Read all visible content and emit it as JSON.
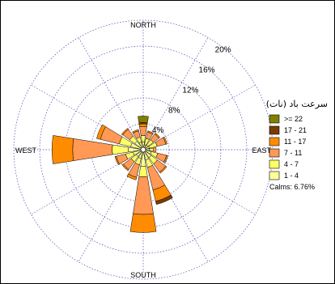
{
  "chart_data": {
    "type": "windrose",
    "title": "",
    "directions": [
      "NORTH",
      "EAST",
      "SOUTH",
      "WEST"
    ],
    "rings": [
      {
        "value": 4,
        "label": "4%"
      },
      {
        "value": 8,
        "label": "8%"
      },
      {
        "value": 12,
        "label": "12%"
      },
      {
        "value": 16,
        "label": "16%"
      },
      {
        "value": 20,
        "label": "20%"
      }
    ],
    "rmax": 20,
    "sector_count": 16,
    "sector_angles": [
      0,
      22.5,
      45,
      67.5,
      90,
      112.5,
      135,
      157.5,
      180,
      202.5,
      225,
      247.5,
      270,
      292.5,
      315,
      337.5
    ],
    "legend": {
      "title": "سرعت باد (نات)",
      "position": "right",
      "calms": "Calms: 6.76%"
    },
    "series": [
      {
        "name": "1 - 4",
        "color": "#ffff99",
        "values": [
          1.2,
          0.8,
          0.9,
          1.0,
          1.0,
          1.3,
          1.5,
          1.6,
          2.6,
          1.4,
          1.3,
          1.6,
          2.3,
          2.0,
          1.6,
          1.2
        ]
      },
      {
        "name": "4 - 7",
        "color": "#ffff66",
        "values": [
          1.0,
          1.0,
          1.0,
          1.2,
          0.6,
          1.0,
          1.2,
          1.2,
          1.6,
          1.0,
          1.0,
          1.2,
          2.5,
          1.8,
          1.0,
          0.8
        ]
      },
      {
        "name": "7 - 11",
        "color": "#ff9955",
        "values": [
          1.4,
          1.0,
          1.1,
          1.4,
          0.4,
          1.4,
          1.6,
          3.6,
          5.8,
          2.0,
          1.5,
          1.5,
          6.1,
          3.0,
          1.3,
          1.0
        ]
      },
      {
        "name": "11 - 17",
        "color": "#ff8c00",
        "values": [
          0.4,
          0.2,
          0.2,
          0.2,
          0.0,
          0.2,
          0.2,
          1.8,
          2.8,
          0.4,
          0.2,
          0.2,
          3.2,
          0.6,
          0.2,
          0.2
        ]
      },
      {
        "name": "17 - 21",
        "color": "#7a3b00",
        "values": [
          0.2,
          0.0,
          0.0,
          0.0,
          0.0,
          0.0,
          0.0,
          0.5,
          0.0,
          0.0,
          0.0,
          0.0,
          0.0,
          0.0,
          0.0,
          0.0
        ]
      },
      {
        "name": ">= 22",
        "color": "#808000",
        "values": [
          1.0,
          0.0,
          0.0,
          0.0,
          0.0,
          0.0,
          0.0,
          0.0,
          0.0,
          0.0,
          0.0,
          0.0,
          0.0,
          0.0,
          0.0,
          0.0
        ]
      }
    ],
    "grid": true
  }
}
